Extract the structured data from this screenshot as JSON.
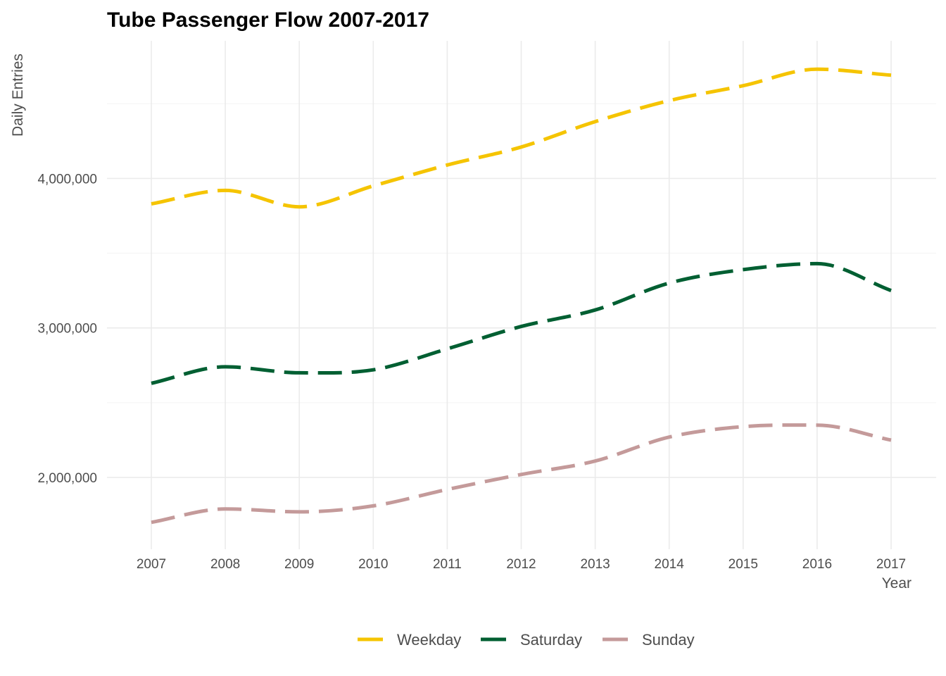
{
  "chart_data": {
    "type": "line",
    "title": "Tube Passenger Flow 2007-2017",
    "xlabel": "Year",
    "ylabel": "Daily Entries",
    "x": [
      "2007",
      "2008",
      "2009",
      "2010",
      "2011",
      "2012",
      "2013",
      "2014",
      "2015",
      "2016",
      "2017"
    ],
    "ylim": [
      1520000,
      4920000
    ],
    "y_ticks": [
      2000000,
      3000000,
      4000000
    ],
    "y_tick_labels": [
      "2,000,000",
      "3,000,000",
      "4,000,000"
    ],
    "y_minor_ticks": [
      2500000,
      3500000,
      4500000
    ],
    "grid": true,
    "legend_position": "bottom",
    "line_style": "dashed",
    "series": [
      {
        "name": "Weekday",
        "color": "#F5C400",
        "values": [
          3830000,
          3920000,
          3810000,
          3950000,
          4090000,
          4210000,
          4380000,
          4520000,
          4620000,
          4730000,
          4690000
        ]
      },
      {
        "name": "Saturday",
        "color": "#005F32",
        "values": [
          2630000,
          2740000,
          2700000,
          2720000,
          2860000,
          3010000,
          3120000,
          3300000,
          3390000,
          3430000,
          3250000
        ]
      },
      {
        "name": "Sunday",
        "color": "#C49A9A",
        "values": [
          1700000,
          1790000,
          1770000,
          1810000,
          1920000,
          2020000,
          2110000,
          2270000,
          2340000,
          2350000,
          2250000
        ]
      }
    ]
  }
}
